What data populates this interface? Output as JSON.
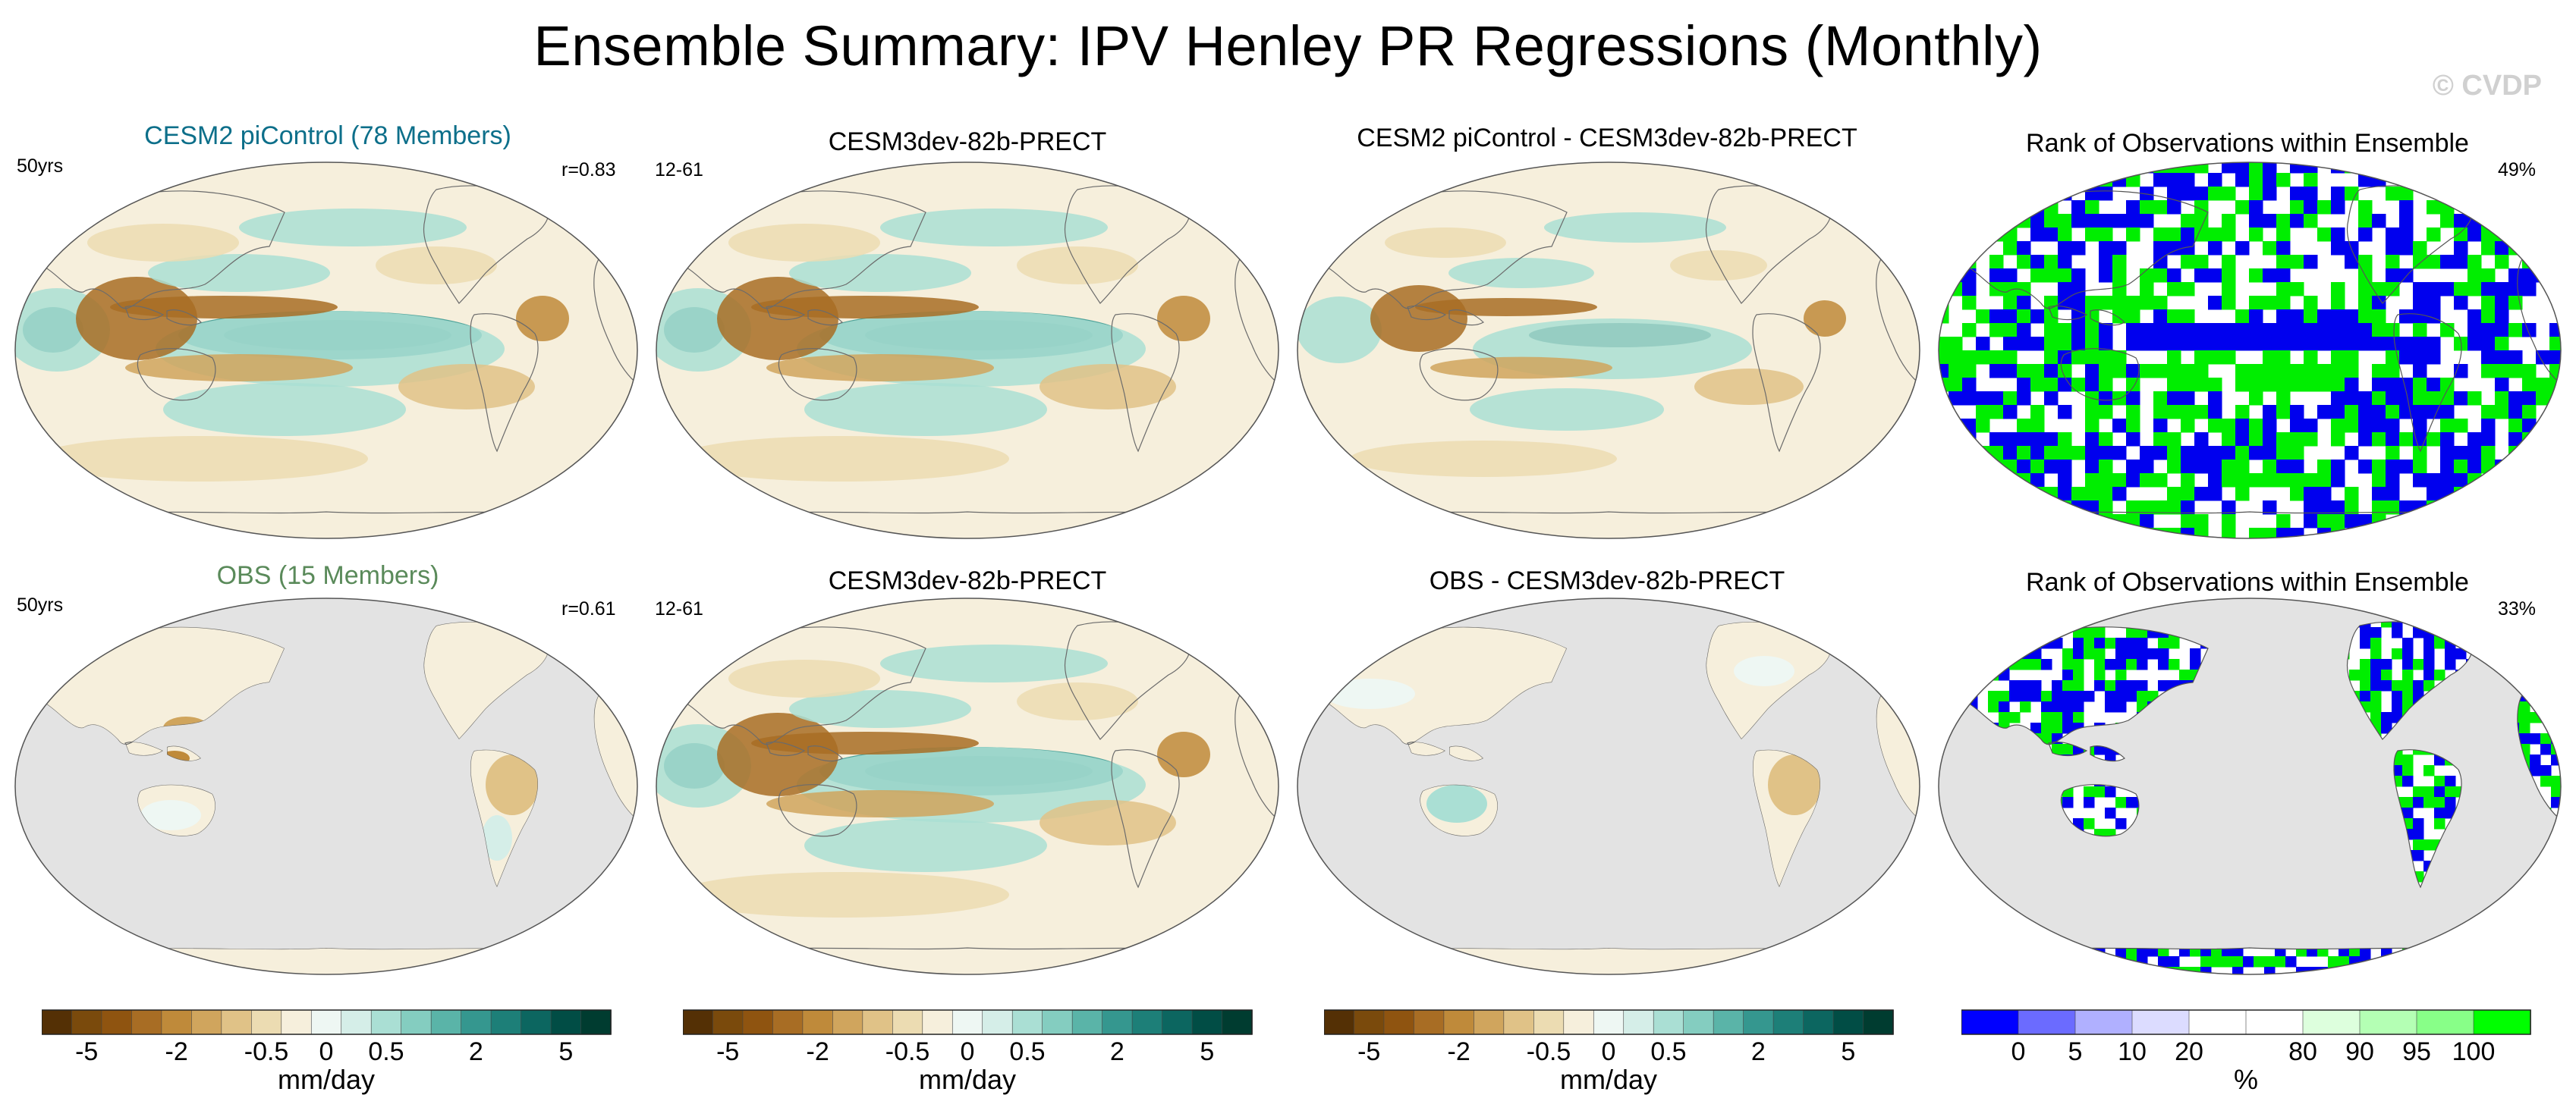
{
  "title": "Ensemble Summary: IPV Henley PR Regressions (Monthly)",
  "watermark": "© CVDP",
  "colors": {
    "brown_green": [
      "#543005",
      "#7a4a0c",
      "#8f5410",
      "#a86d24",
      "#bf8a3a",
      "#d0a55d",
      "#e0c287",
      "#ecdcb2",
      "#f6efdc",
      "#eef7f3",
      "#d5eee8",
      "#aadfd4",
      "#84cdc0",
      "#5ab4a8",
      "#35978f",
      "#1d7f78",
      "#0c6660",
      "#014d45",
      "#003c30"
    ],
    "rank": [
      "#0000ff",
      "#6b6bff",
      "#b0b0ff",
      "#dcdcff",
      "#ffffff",
      "#ffffff",
      "#ddffdd",
      "#b4ffb4",
      "#88ff88",
      "#00ff00"
    ],
    "rank_blue": "#0000ee",
    "rank_green": "#00ee00",
    "land_mask": "#e3e3e3"
  },
  "panels": [
    {
      "title": "CESM2 piControl (78 Members)",
      "left": "50yrs",
      "right": "r=0.83",
      "style": "cesm_full",
      "title_color": "blue"
    },
    {
      "title": "CESM3dev-82b-PRECT",
      "left": "12-61",
      "right": "",
      "style": "cesm3_full",
      "title_color": "black"
    },
    {
      "title": "CESM2 piControl - CESM3dev-82b-PRECT",
      "left": "",
      "right": "",
      "style": "diff_full",
      "title_color": "black"
    },
    {
      "title": "Rank of Observations within Ensemble",
      "left": "",
      "right": "49%",
      "style": "rank_full",
      "title_color": "black"
    },
    {
      "title": "OBS (15 Members)",
      "left": "50yrs",
      "right": "r=0.61",
      "style": "obs_land",
      "title_color": "green"
    },
    {
      "title": "CESM3dev-82b-PRECT",
      "left": "12-61",
      "right": "",
      "style": "cesm3_full",
      "title_color": "black"
    },
    {
      "title": "OBS - CESM3dev-82b-PRECT",
      "left": "",
      "right": "",
      "style": "diff_land",
      "title_color": "black"
    },
    {
      "title": "Rank of Observations within Ensemble",
      "left": "",
      "right": "33%",
      "style": "rank_land",
      "title_color": "black"
    }
  ],
  "colorbars": [
    {
      "labels": [
        "-5",
        "-2",
        "-0.5",
        "0",
        "0.5",
        "2",
        "5"
      ],
      "unit": "mm/day",
      "scheme": "brown_green"
    },
    {
      "labels": [
        "-5",
        "-2",
        "-0.5",
        "0",
        "0.5",
        "2",
        "5"
      ],
      "unit": "mm/day",
      "scheme": "brown_green"
    },
    {
      "labels": [
        "-5",
        "-2",
        "-0.5",
        "0",
        "0.5",
        "2",
        "5"
      ],
      "unit": "mm/day",
      "scheme": "brown_green"
    },
    {
      "labels": [
        "0",
        "5",
        "10",
        "20",
        "80",
        "90",
        "95",
        "100"
      ],
      "unit": "%",
      "scheme": "rank"
    }
  ],
  "chart_data": {
    "type": "heatmap",
    "title": "Ensemble Summary: IPV Henley PR Regressions (Monthly)",
    "variable": "PR regression on IPV Henley index",
    "units": "mm/day",
    "contour_levels": [
      -5,
      -4,
      -3,
      -2,
      -1,
      -0.5,
      -0.2,
      -0.1,
      0,
      0.1,
      0.2,
      0.5,
      1,
      2,
      3,
      4,
      5
    ],
    "colorbar_ticks": [
      -5,
      -2,
      -0.5,
      0,
      0.5,
      2,
      5
    ],
    "rank_ticks": [
      0,
      5,
      10,
      20,
      80,
      90,
      95,
      100
    ],
    "rank_units": "%",
    "panels": [
      {
        "name": "CESM2 piControl (78 Members)",
        "period": "50yrs",
        "pattern_corr": 0.83
      },
      {
        "name": "CESM3dev-82b-PRECT",
        "period": "12-61"
      },
      {
        "name": "CESM2 piControl - CESM3dev-82b-PRECT"
      },
      {
        "name": "Rank of Observations within Ensemble",
        "percent": 49
      },
      {
        "name": "OBS (15 Members)",
        "period": "50yrs",
        "pattern_corr": 0.61
      },
      {
        "name": "CESM3dev-82b-PRECT",
        "period": "12-61"
      },
      {
        "name": "OBS - CESM3dev-82b-PRECT"
      },
      {
        "name": "Rank of Observations within Ensemble",
        "percent": 33
      }
    ]
  }
}
